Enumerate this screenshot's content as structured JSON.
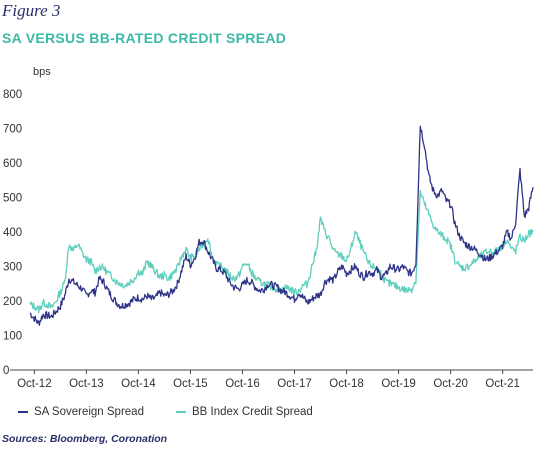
{
  "figure_label": "Figure 3",
  "title": "SA VERSUS BB-RATED CREDIT SPREAD",
  "source": "Sources: Bloomberg, Coronation",
  "colors": {
    "sa": "#2e3388",
    "bb": "#5ecfbd",
    "axis": "#333333",
    "title": "#3cb8a6"
  },
  "chart_data": {
    "type": "line",
    "title": "SA VERSUS BB-RATED CREDIT SPREAD",
    "ylabel": "bps",
    "xlabel": "",
    "ylim": [
      0,
      800
    ],
    "yticks": [
      "0",
      "100",
      "200",
      "300",
      "400",
      "500",
      "600",
      "700",
      "800"
    ],
    "xlim": [
      "2012-09",
      "2022-05"
    ],
    "xticks": [
      {
        "label": "Oct-12",
        "date": "2012-10"
      },
      {
        "label": "Oct-13",
        "date": "2013-10"
      },
      {
        "label": "Oct-14",
        "date": "2014-10"
      },
      {
        "label": "Oct-15",
        "date": "2015-10"
      },
      {
        "label": "Oct-16",
        "date": "2016-10"
      },
      {
        "label": "Oct-17",
        "date": "2017-10"
      },
      {
        "label": "Oct-18",
        "date": "2018-10"
      },
      {
        "label": "Oct-19",
        "date": "2019-10"
      },
      {
        "label": "Oct-20",
        "date": "2020-10"
      },
      {
        "label": "Oct-21",
        "date": "2021-10"
      }
    ],
    "grid": false,
    "legend": "bottom",
    "series": [
      {
        "name": "SA Sovereign Spread",
        "color": "#2e3388",
        "points": [
          [
            "2012-09",
            165
          ],
          [
            "2012-10",
            150
          ],
          [
            "2012-11",
            135
          ],
          [
            "2012-12",
            160
          ],
          [
            "2013-01",
            158
          ],
          [
            "2013-02",
            155
          ],
          [
            "2013-03",
            170
          ],
          [
            "2013-04",
            185
          ],
          [
            "2013-05",
            215
          ],
          [
            "2013-06",
            265
          ],
          [
            "2013-07",
            255
          ],
          [
            "2013-08",
            245
          ],
          [
            "2013-09",
            235
          ],
          [
            "2013-10",
            215
          ],
          [
            "2013-11",
            230
          ],
          [
            "2013-12",
            225
          ],
          [
            "2014-01",
            265
          ],
          [
            "2014-02",
            255
          ],
          [
            "2014-03",
            230
          ],
          [
            "2014-04",
            210
          ],
          [
            "2014-05",
            195
          ],
          [
            "2014-06",
            185
          ],
          [
            "2014-07",
            190
          ],
          [
            "2014-08",
            195
          ],
          [
            "2014-09",
            205
          ],
          [
            "2014-10",
            210
          ],
          [
            "2014-11",
            205
          ],
          [
            "2014-12",
            215
          ],
          [
            "2015-01",
            205
          ],
          [
            "2015-02",
            210
          ],
          [
            "2015-03",
            225
          ],
          [
            "2015-04",
            215
          ],
          [
            "2015-05",
            220
          ],
          [
            "2015-06",
            230
          ],
          [
            "2015-07",
            250
          ],
          [
            "2015-08",
            290
          ],
          [
            "2015-09",
            330
          ],
          [
            "2015-10",
            305
          ],
          [
            "2015-11",
            325
          ],
          [
            "2015-12",
            370
          ],
          [
            "2016-01",
            375
          ],
          [
            "2016-02",
            345
          ],
          [
            "2016-03",
            320
          ],
          [
            "2016-04",
            295
          ],
          [
            "2016-05",
            290
          ],
          [
            "2016-06",
            280
          ],
          [
            "2016-07",
            255
          ],
          [
            "2016-08",
            240
          ],
          [
            "2016-09",
            235
          ],
          [
            "2016-10",
            245
          ],
          [
            "2016-11",
            260
          ],
          [
            "2016-12",
            255
          ],
          [
            "2017-01",
            240
          ],
          [
            "2017-02",
            230
          ],
          [
            "2017-03",
            235
          ],
          [
            "2017-04",
            250
          ],
          [
            "2017-05",
            245
          ],
          [
            "2017-06",
            240
          ],
          [
            "2017-07",
            230
          ],
          [
            "2017-08",
            225
          ],
          [
            "2017-09",
            215
          ],
          [
            "2017-10",
            205
          ],
          [
            "2017-11",
            225
          ],
          [
            "2017-12",
            210
          ],
          [
            "2018-01",
            195
          ],
          [
            "2018-02",
            205
          ],
          [
            "2018-03",
            215
          ],
          [
            "2018-04",
            220
          ],
          [
            "2018-05",
            255
          ],
          [
            "2018-06",
            265
          ],
          [
            "2018-07",
            260
          ],
          [
            "2018-08",
            285
          ],
          [
            "2018-09",
            300
          ],
          [
            "2018-10",
            280
          ],
          [
            "2018-11",
            290
          ],
          [
            "2018-12",
            300
          ],
          [
            "2019-01",
            280
          ],
          [
            "2019-02",
            270
          ],
          [
            "2019-03",
            285
          ],
          [
            "2019-04",
            280
          ],
          [
            "2019-05",
            290
          ],
          [
            "2019-06",
            270
          ],
          [
            "2019-07",
            275
          ],
          [
            "2019-08",
            300
          ],
          [
            "2019-09",
            295
          ],
          [
            "2019-10",
            290
          ],
          [
            "2019-11",
            300
          ],
          [
            "2019-12",
            285
          ],
          [
            "2020-01",
            280
          ],
          [
            "2020-02",
            310
          ],
          [
            "2020-03",
            710
          ],
          [
            "2020-04",
            650
          ],
          [
            "2020-05",
            560
          ],
          [
            "2020-06",
            520
          ],
          [
            "2020-07",
            505
          ],
          [
            "2020-08",
            520
          ],
          [
            "2020-09",
            490
          ],
          [
            "2020-10",
            480
          ],
          [
            "2020-11",
            425
          ],
          [
            "2020-12",
            390
          ],
          [
            "2021-01",
            370
          ],
          [
            "2021-02",
            360
          ],
          [
            "2021-03",
            355
          ],
          [
            "2021-04",
            345
          ],
          [
            "2021-05",
            335
          ],
          [
            "2021-06",
            320
          ],
          [
            "2021-07",
            325
          ],
          [
            "2021-08",
            335
          ],
          [
            "2021-09",
            345
          ],
          [
            "2021-10",
            360
          ],
          [
            "2021-11",
            400
          ],
          [
            "2021-12",
            380
          ],
          [
            "2022-01",
            430
          ],
          [
            "2022-02",
            580
          ],
          [
            "2022-03",
            445
          ],
          [
            "2022-04",
            470
          ],
          [
            "2022-05",
            530
          ]
        ]
      },
      {
        "name": "BB Index Credit Spread",
        "color": "#5ecfbd",
        "points": [
          [
            "2012-09",
            190
          ],
          [
            "2012-10",
            185
          ],
          [
            "2012-11",
            175
          ],
          [
            "2012-12",
            195
          ],
          [
            "2013-01",
            190
          ],
          [
            "2013-02",
            180
          ],
          [
            "2013-03",
            200
          ],
          [
            "2013-04",
            225
          ],
          [
            "2013-05",
            255
          ],
          [
            "2013-06",
            365
          ],
          [
            "2013-07",
            345
          ],
          [
            "2013-08",
            365
          ],
          [
            "2013-09",
            340
          ],
          [
            "2013-10",
            320
          ],
          [
            "2013-11",
            315
          ],
          [
            "2013-12",
            285
          ],
          [
            "2014-01",
            300
          ],
          [
            "2014-02",
            295
          ],
          [
            "2014-03",
            280
          ],
          [
            "2014-04",
            270
          ],
          [
            "2014-05",
            255
          ],
          [
            "2014-06",
            250
          ],
          [
            "2014-07",
            245
          ],
          [
            "2014-08",
            255
          ],
          [
            "2014-09",
            265
          ],
          [
            "2014-10",
            285
          ],
          [
            "2014-11",
            280
          ],
          [
            "2014-12",
            315
          ],
          [
            "2015-01",
            300
          ],
          [
            "2015-02",
            285
          ],
          [
            "2015-03",
            270
          ],
          [
            "2015-04",
            275
          ],
          [
            "2015-05",
            265
          ],
          [
            "2015-06",
            280
          ],
          [
            "2015-07",
            295
          ],
          [
            "2015-08",
            330
          ],
          [
            "2015-09",
            350
          ],
          [
            "2015-10",
            325
          ],
          [
            "2015-11",
            330
          ],
          [
            "2015-12",
            350
          ],
          [
            "2016-01",
            365
          ],
          [
            "2016-02",
            385
          ],
          [
            "2016-03",
            330
          ],
          [
            "2016-04",
            305
          ],
          [
            "2016-05",
            300
          ],
          [
            "2016-06",
            290
          ],
          [
            "2016-07",
            275
          ],
          [
            "2016-08",
            265
          ],
          [
            "2016-09",
            270
          ],
          [
            "2016-10",
            300
          ],
          [
            "2016-11",
            310
          ],
          [
            "2016-12",
            285
          ],
          [
            "2017-01",
            265
          ],
          [
            "2017-02",
            255
          ],
          [
            "2017-03",
            250
          ],
          [
            "2017-04",
            245
          ],
          [
            "2017-05",
            240
          ],
          [
            "2017-06",
            235
          ],
          [
            "2017-07",
            230
          ],
          [
            "2017-08",
            240
          ],
          [
            "2017-09",
            235
          ],
          [
            "2017-10",
            225
          ],
          [
            "2017-11",
            230
          ],
          [
            "2017-12",
            245
          ],
          [
            "2018-01",
            250
          ],
          [
            "2018-02",
            300
          ],
          [
            "2018-03",
            345
          ],
          [
            "2018-04",
            440
          ],
          [
            "2018-05",
            400
          ],
          [
            "2018-06",
            380
          ],
          [
            "2018-07",
            345
          ],
          [
            "2018-08",
            335
          ],
          [
            "2018-09",
            330
          ],
          [
            "2018-10",
            315
          ],
          [
            "2018-11",
            350
          ],
          [
            "2018-12",
            400
          ],
          [
            "2019-01",
            370
          ],
          [
            "2019-02",
            340
          ],
          [
            "2019-03",
            310
          ],
          [
            "2019-04",
            300
          ],
          [
            "2019-05",
            295
          ],
          [
            "2019-06",
            280
          ],
          [
            "2019-07",
            255
          ],
          [
            "2019-08",
            250
          ],
          [
            "2019-09",
            245
          ],
          [
            "2019-10",
            240
          ],
          [
            "2019-11",
            235
          ],
          [
            "2019-12",
            230
          ],
          [
            "2020-01",
            235
          ],
          [
            "2020-02",
            260
          ],
          [
            "2020-03",
            515
          ],
          [
            "2020-04",
            480
          ],
          [
            "2020-05",
            450
          ],
          [
            "2020-06",
            420
          ],
          [
            "2020-07",
            400
          ],
          [
            "2020-08",
            390
          ],
          [
            "2020-09",
            380
          ],
          [
            "2020-10",
            360
          ],
          [
            "2020-11",
            320
          ],
          [
            "2020-12",
            300
          ],
          [
            "2021-01",
            295
          ],
          [
            "2021-02",
            300
          ],
          [
            "2021-03",
            310
          ],
          [
            "2021-04",
            320
          ],
          [
            "2021-05",
            330
          ],
          [
            "2021-06",
            340
          ],
          [
            "2021-07",
            345
          ],
          [
            "2021-08",
            340
          ],
          [
            "2021-09",
            350
          ],
          [
            "2021-10",
            360
          ],
          [
            "2021-11",
            380
          ],
          [
            "2021-12",
            350
          ],
          [
            "2022-01",
            345
          ],
          [
            "2022-02",
            385
          ],
          [
            "2022-03",
            375
          ],
          [
            "2022-04",
            395
          ],
          [
            "2022-05",
            400
          ]
        ]
      }
    ]
  }
}
